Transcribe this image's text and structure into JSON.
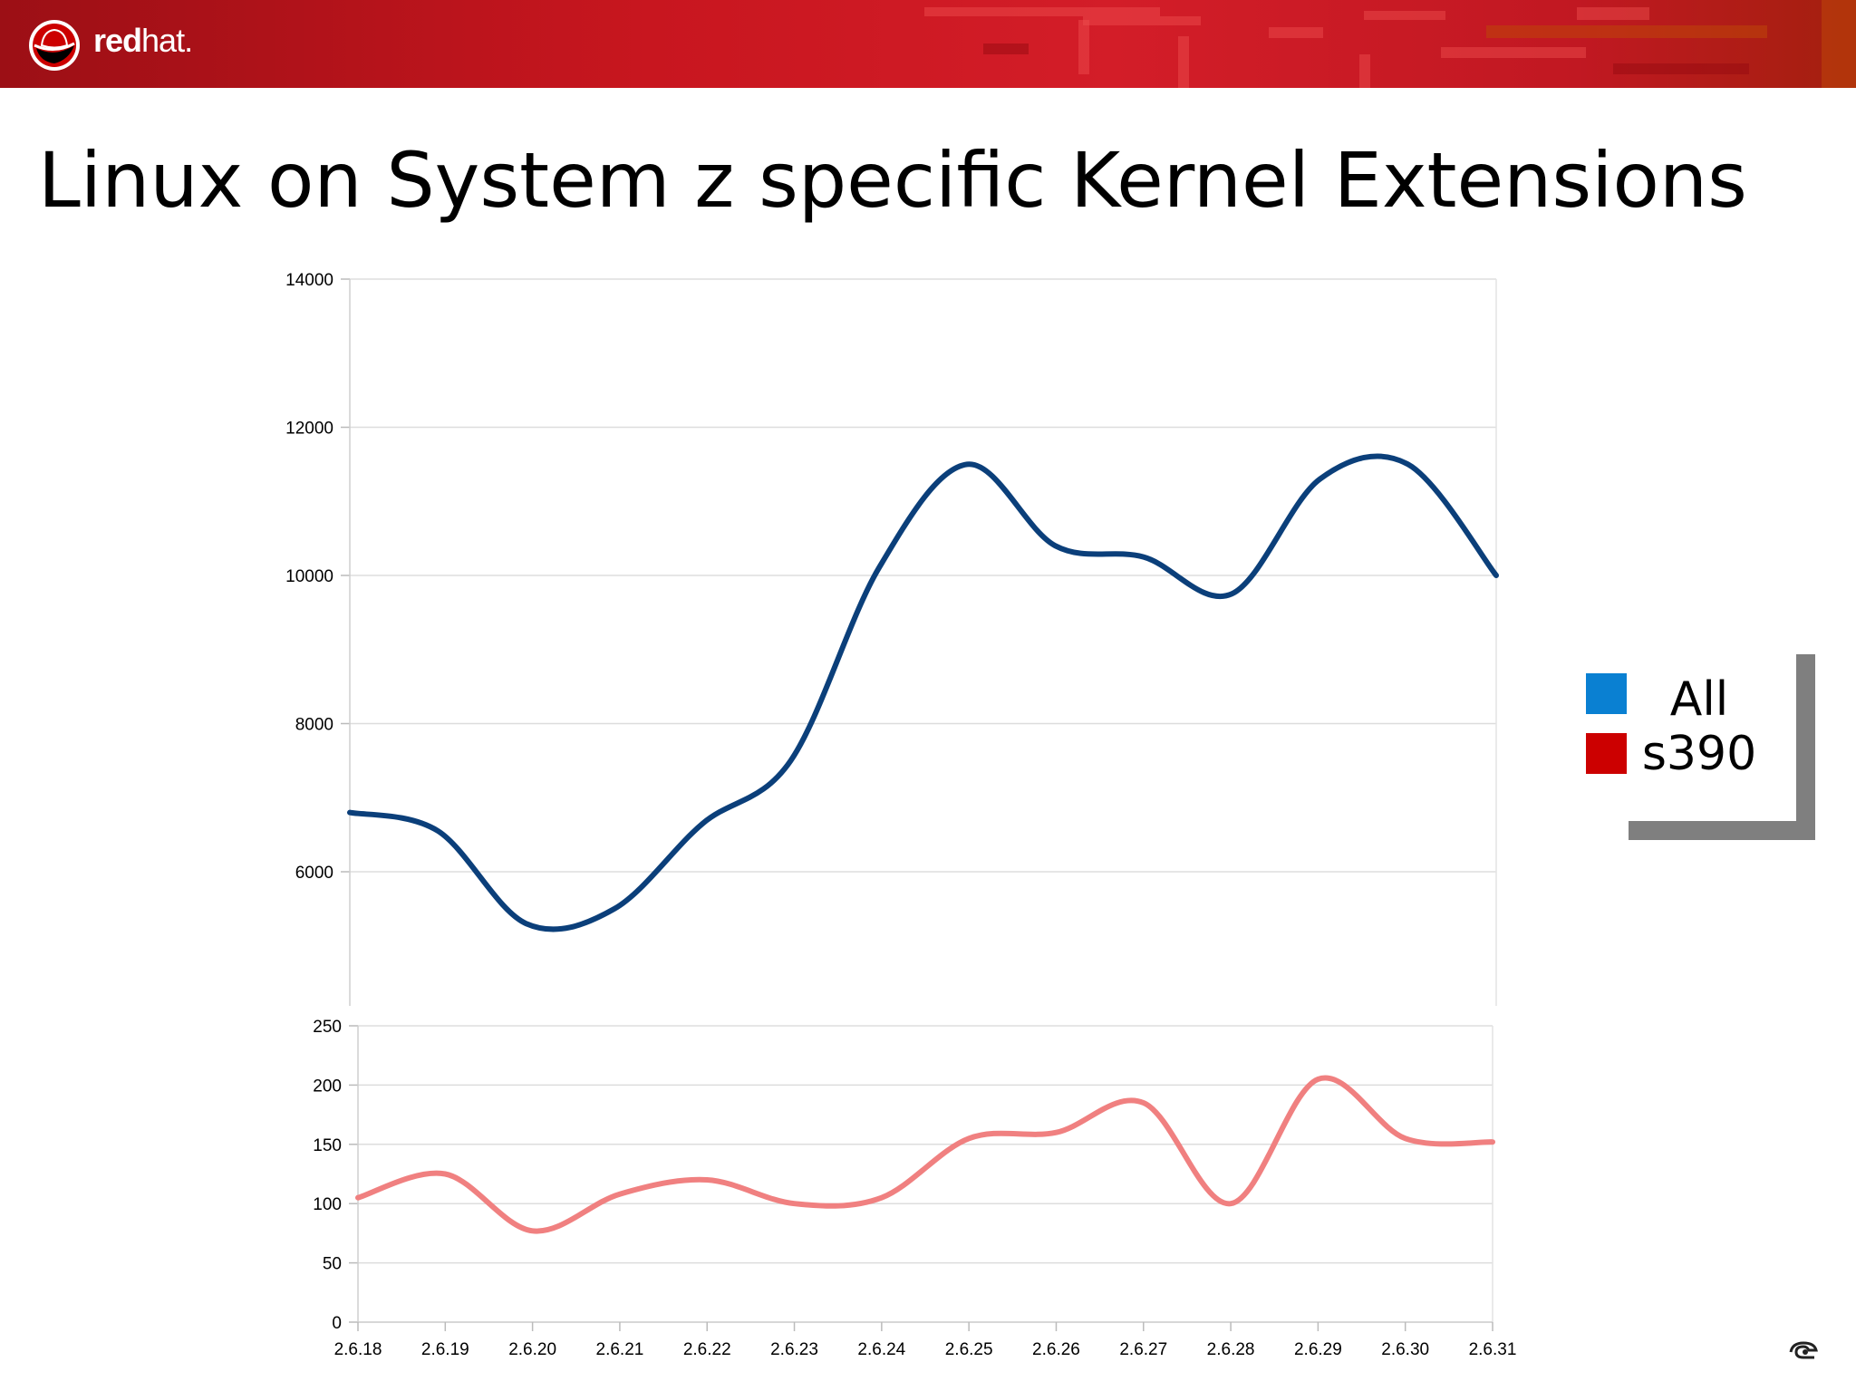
{
  "header": {
    "logo_text_bold": "red",
    "logo_text_light": "hat."
  },
  "slide": {
    "title": "Linux on System z specific Kernel Extensions"
  },
  "colors": {
    "banner_red": "#c8161f",
    "all_line": "#0b3f7a",
    "s390_line": "#f08080",
    "legend_all": "#0a80d2",
    "legend_s390": "#cc0000",
    "legend_frame": "#7f7f7f",
    "grid": "#dddddd"
  },
  "legend": {
    "items": [
      {
        "label": "All",
        "color": "#0a80d2"
      },
      {
        "label": "s390",
        "color": "#cc0000"
      }
    ]
  },
  "chart_data": [
    {
      "type": "line",
      "title": "",
      "xlabel": "",
      "ylabel": "",
      "categories": [
        "2.6.18",
        "2.6.19",
        "2.6.20",
        "2.6.21",
        "2.6.22",
        "2.6.23",
        "2.6.24",
        "2.6.25",
        "2.6.26",
        "2.6.27",
        "2.6.28",
        "2.6.29",
        "2.6.30",
        "2.6.31"
      ],
      "series": [
        {
          "name": "All",
          "color": "#0b3f7a",
          "values": [
            6800,
            6550,
            5300,
            5500,
            6650,
            7500,
            10100,
            11500,
            10400,
            10250,
            9750,
            11300,
            11500,
            10000
          ]
        }
      ],
      "ylim": [
        5000,
        14000
      ],
      "yticks": [
        6000,
        8000,
        10000,
        12000,
        14000
      ],
      "smooth": true,
      "grid": true
    },
    {
      "type": "line",
      "title": "",
      "xlabel": "",
      "ylabel": "",
      "categories": [
        "2.6.18",
        "2.6.19",
        "2.6.20",
        "2.6.21",
        "2.6.22",
        "2.6.23",
        "2.6.24",
        "2.6.25",
        "2.6.26",
        "2.6.27",
        "2.6.28",
        "2.6.29",
        "2.6.30",
        "2.6.31"
      ],
      "series": [
        {
          "name": "s390",
          "color": "#f08080",
          "values": [
            105,
            125,
            77,
            108,
            120,
            100,
            105,
            155,
            160,
            185,
            100,
            205,
            155,
            152
          ]
        }
      ],
      "ylim": [
        0,
        250
      ],
      "yticks": [
        0,
        50,
        100,
        150,
        200,
        250
      ],
      "smooth": true,
      "grid": true
    }
  ]
}
